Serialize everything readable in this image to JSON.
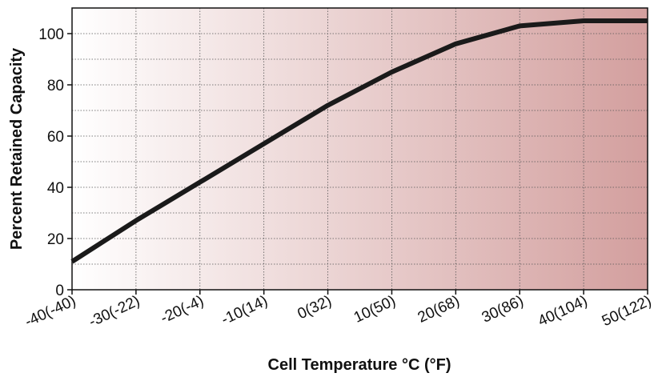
{
  "chart_data": {
    "type": "line",
    "title": "",
    "xlabel": "Cell Temperature °C (°F)",
    "ylabel": "Percent Retained Capacity",
    "xlim": [
      -40,
      50
    ],
    "ylim": [
      0,
      110
    ],
    "grid": true,
    "x_ticks": [
      -40,
      -30,
      -20,
      -10,
      0,
      10,
      20,
      30,
      40,
      50
    ],
    "x_tick_labels": [
      "-40(-40)",
      "-30(-22)",
      "-20(-4)",
      "-10(14)",
      "0(32)",
      "10(50)",
      "20(68)",
      "30(86)",
      "40(104)",
      "50(122)"
    ],
    "y_ticks": [
      0,
      20,
      40,
      60,
      80,
      100
    ],
    "y_tick_labels": [
      "0",
      "20",
      "40",
      "60",
      "80",
      "100"
    ],
    "series": [
      {
        "x": [
          -40,
          -30,
          -20,
          -10,
          0,
          10,
          20,
          30,
          40,
          50
        ],
        "y": [
          11,
          27,
          42,
          57,
          72,
          85,
          96,
          103,
          105,
          105
        ]
      }
    ],
    "background_gradient": [
      "#ffffff",
      "#d39f9e"
    ],
    "line_color": "#1a1a1a"
  }
}
